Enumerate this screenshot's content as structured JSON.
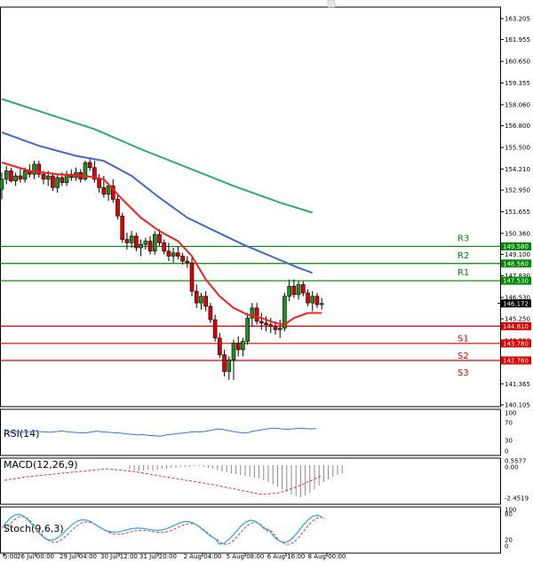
{
  "colors": {
    "bull": "#1e8e1e",
    "bear": "#dd0000",
    "resistance": "#008800",
    "support": "#dd0000",
    "ma_fast": "#ee2222",
    "ma_mid": "#4466cc",
    "ma_slow": "#33aa66",
    "rsi_line": "#3377dd",
    "macd_signal": "#ee3333",
    "stoch_main": "#22aadd",
    "stoch_signal": "#ee3333"
  },
  "price_axis": {
    "ticks": [
      "163.205",
      "161.955",
      "160.650",
      "159.355",
      "158.060",
      "156.800",
      "155.500",
      "154.210",
      "152.950",
      "151.655",
      "150.360",
      "149.100",
      "147.830",
      "146.530",
      "145.250",
      "143.960",
      "142.660",
      "141.365",
      "140.105"
    ]
  },
  "levels": [
    {
      "name": "R3",
      "value": 149.58,
      "label": "149.580",
      "kind": "resistance"
    },
    {
      "name": "R2",
      "value": 148.56,
      "label": "148.560",
      "kind": "resistance"
    },
    {
      "name": "R1",
      "value": 147.53,
      "label": "147.530",
      "kind": "resistance"
    },
    {
      "name": "S1",
      "value": 144.81,
      "label": "144.810",
      "kind": "support"
    },
    {
      "name": "S2",
      "value": 143.78,
      "label": "143.780",
      "kind": "support"
    },
    {
      "name": "S3",
      "value": 142.76,
      "label": "142.760",
      "kind": "support"
    }
  ],
  "current_price": {
    "value": 146.172,
    "label": "146.172"
  },
  "time_axis": [
    "5:00",
    "26 Jul 00:00",
    "29 Jul 04:00",
    "30 Jul 12:00",
    "31 Jul 20:00",
    "2 Aug 04:00",
    "5 Aug 08:00",
    "6 Aug 16:00",
    "8 Aug 00:00"
  ],
  "rsi": {
    "title": "RSI(14)",
    "ticks": [
      "100",
      "70",
      "30",
      "0"
    ]
  },
  "macd": {
    "title": "MACD(12,26,9)",
    "ticks": [
      "0.5577",
      "0.00",
      "-2.4519"
    ]
  },
  "stoch": {
    "title": "Stoch(9,6,3)",
    "ticks": [
      "100",
      "80",
      "20",
      "0"
    ]
  },
  "chart_data": {
    "type": "candlestick",
    "y_range": [
      140.105,
      163.205
    ],
    "candles": [
      {
        "o": 153.0,
        "h": 154.0,
        "l": 152.4,
        "c": 153.6
      },
      {
        "o": 153.6,
        "h": 154.4,
        "l": 153.3,
        "c": 154.1
      },
      {
        "o": 154.1,
        "h": 154.3,
        "l": 153.4,
        "c": 153.5
      },
      {
        "o": 153.5,
        "h": 154.0,
        "l": 153.2,
        "c": 153.8
      },
      {
        "o": 153.8,
        "h": 154.2,
        "l": 153.4,
        "c": 153.6
      },
      {
        "o": 153.6,
        "h": 154.3,
        "l": 153.4,
        "c": 154.1
      },
      {
        "o": 154.1,
        "h": 154.5,
        "l": 153.7,
        "c": 153.9
      },
      {
        "o": 153.9,
        "h": 154.7,
        "l": 153.6,
        "c": 154.5
      },
      {
        "o": 154.5,
        "h": 154.7,
        "l": 153.7,
        "c": 153.9
      },
      {
        "o": 153.9,
        "h": 154.1,
        "l": 153.3,
        "c": 153.6
      },
      {
        "o": 153.6,
        "h": 154.1,
        "l": 153.2,
        "c": 153.8
      },
      {
        "o": 153.8,
        "h": 154.0,
        "l": 152.9,
        "c": 153.1
      },
      {
        "o": 153.1,
        "h": 153.9,
        "l": 152.8,
        "c": 153.7
      },
      {
        "o": 153.7,
        "h": 154.0,
        "l": 153.2,
        "c": 153.4
      },
      {
        "o": 153.4,
        "h": 154.1,
        "l": 153.2,
        "c": 153.9
      },
      {
        "o": 153.9,
        "h": 154.2,
        "l": 153.5,
        "c": 153.7
      },
      {
        "o": 153.7,
        "h": 154.3,
        "l": 153.5,
        "c": 154.0
      },
      {
        "o": 154.0,
        "h": 154.2,
        "l": 153.4,
        "c": 153.6
      },
      {
        "o": 153.6,
        "h": 154.7,
        "l": 153.5,
        "c": 154.6
      },
      {
        "o": 154.6,
        "h": 154.9,
        "l": 154.1,
        "c": 154.3
      },
      {
        "o": 154.3,
        "h": 154.7,
        "l": 153.4,
        "c": 153.6
      },
      {
        "o": 153.6,
        "h": 153.9,
        "l": 152.8,
        "c": 153.1
      },
      {
        "o": 153.1,
        "h": 153.8,
        "l": 152.5,
        "c": 152.7
      },
      {
        "o": 152.7,
        "h": 153.4,
        "l": 152.3,
        "c": 153.2
      },
      {
        "o": 153.2,
        "h": 153.6,
        "l": 152.2,
        "c": 152.4
      },
      {
        "o": 152.4,
        "h": 152.7,
        "l": 151.2,
        "c": 151.4
      },
      {
        "o": 151.4,
        "h": 151.6,
        "l": 149.8,
        "c": 150.0
      },
      {
        "o": 150.0,
        "h": 150.4,
        "l": 149.4,
        "c": 149.8
      },
      {
        "o": 149.8,
        "h": 150.5,
        "l": 149.5,
        "c": 150.2
      },
      {
        "o": 150.2,
        "h": 150.4,
        "l": 149.3,
        "c": 149.5
      },
      {
        "o": 149.5,
        "h": 150.0,
        "l": 149.0,
        "c": 149.7
      },
      {
        "o": 149.7,
        "h": 150.1,
        "l": 149.4,
        "c": 149.9
      },
      {
        "o": 149.9,
        "h": 150.2,
        "l": 149.1,
        "c": 149.3
      },
      {
        "o": 149.3,
        "h": 150.5,
        "l": 149.1,
        "c": 150.3
      },
      {
        "o": 150.3,
        "h": 150.6,
        "l": 149.6,
        "c": 149.8
      },
      {
        "o": 149.8,
        "h": 150.0,
        "l": 149.1,
        "c": 149.3
      },
      {
        "o": 149.3,
        "h": 149.8,
        "l": 148.7,
        "c": 149.0
      },
      {
        "o": 149.0,
        "h": 149.5,
        "l": 148.6,
        "c": 149.2
      },
      {
        "o": 149.2,
        "h": 149.6,
        "l": 148.8,
        "c": 149.0
      },
      {
        "o": 149.0,
        "h": 149.2,
        "l": 148.5,
        "c": 148.7
      },
      {
        "o": 148.7,
        "h": 149.0,
        "l": 148.3,
        "c": 148.6
      },
      {
        "o": 148.6,
        "h": 148.9,
        "l": 146.6,
        "c": 146.9
      },
      {
        "o": 146.9,
        "h": 147.3,
        "l": 145.9,
        "c": 146.2
      },
      {
        "o": 146.2,
        "h": 146.8,
        "l": 145.8,
        "c": 146.6
      },
      {
        "o": 146.6,
        "h": 146.9,
        "l": 145.7,
        "c": 146.0
      },
      {
        "o": 146.0,
        "h": 146.2,
        "l": 145.0,
        "c": 145.2
      },
      {
        "o": 145.2,
        "h": 145.5,
        "l": 143.9,
        "c": 144.1
      },
      {
        "o": 144.1,
        "h": 144.4,
        "l": 142.9,
        "c": 143.1
      },
      {
        "o": 143.1,
        "h": 143.4,
        "l": 141.8,
        "c": 142.1
      },
      {
        "o": 142.1,
        "h": 143.0,
        "l": 141.6,
        "c": 142.8
      },
      {
        "o": 142.8,
        "h": 144.0,
        "l": 141.6,
        "c": 143.8
      },
      {
        "o": 143.8,
        "h": 144.2,
        "l": 143.0,
        "c": 143.4
      },
      {
        "o": 143.4,
        "h": 144.1,
        "l": 143.0,
        "c": 143.9
      },
      {
        "o": 143.9,
        "h": 145.6,
        "l": 143.7,
        "c": 145.3
      },
      {
        "o": 145.3,
        "h": 146.2,
        "l": 144.8,
        "c": 145.9
      },
      {
        "o": 145.9,
        "h": 146.2,
        "l": 144.9,
        "c": 145.1
      },
      {
        "o": 145.1,
        "h": 145.6,
        "l": 144.6,
        "c": 145.0
      },
      {
        "o": 145.0,
        "h": 145.4,
        "l": 144.5,
        "c": 144.9
      },
      {
        "o": 144.9,
        "h": 145.3,
        "l": 144.4,
        "c": 144.8
      },
      {
        "o": 144.8,
        "h": 145.1,
        "l": 144.3,
        "c": 144.6
      },
      {
        "o": 144.6,
        "h": 145.2,
        "l": 144.1,
        "c": 144.7
      },
      {
        "o": 144.7,
        "h": 146.8,
        "l": 144.5,
        "c": 146.6
      },
      {
        "o": 146.6,
        "h": 147.6,
        "l": 146.3,
        "c": 147.2
      },
      {
        "o": 147.2,
        "h": 147.6,
        "l": 146.5,
        "c": 146.7
      },
      {
        "o": 146.7,
        "h": 147.5,
        "l": 146.4,
        "c": 147.3
      },
      {
        "o": 147.3,
        "h": 147.5,
        "l": 146.6,
        "c": 146.8
      },
      {
        "o": 146.8,
        "h": 147.0,
        "l": 146.0,
        "c": 146.2
      },
      {
        "o": 146.2,
        "h": 146.9,
        "l": 145.7,
        "c": 146.6
      },
      {
        "o": 146.6,
        "h": 146.8,
        "l": 145.9,
        "c": 146.1
      },
      {
        "o": 146.1,
        "h": 146.5,
        "l": 145.8,
        "c": 146.172
      }
    ],
    "ma_fast": [
      [
        0,
        154.6
      ],
      [
        6,
        154.1
      ],
      [
        12,
        153.9
      ],
      [
        18,
        153.8
      ],
      [
        22,
        153.6
      ],
      [
        26,
        152.4
      ],
      [
        30,
        151.3
      ],
      [
        34,
        150.5
      ],
      [
        38,
        149.9
      ],
      [
        41,
        149.0
      ],
      [
        44,
        147.6
      ],
      [
        47,
        146.6
      ],
      [
        50,
        145.9
      ],
      [
        53,
        145.5
      ],
      [
        56,
        145.3
      ],
      [
        59,
        145.0
      ],
      [
        61,
        144.9
      ],
      [
        63,
        145.3
      ],
      [
        66,
        145.6
      ],
      [
        69,
        145.6
      ]
    ],
    "ma_mid": [
      [
        0,
        156.4
      ],
      [
        8,
        155.6
      ],
      [
        16,
        155.0
      ],
      [
        22,
        154.7
      ],
      [
        28,
        153.8
      ],
      [
        34,
        152.5
      ],
      [
        40,
        151.3
      ],
      [
        46,
        150.5
      ],
      [
        52,
        149.7
      ],
      [
        58,
        149.0
      ],
      [
        64,
        148.3
      ],
      [
        67,
        148.0
      ]
    ],
    "ma_slow": [
      [
        0,
        158.4
      ],
      [
        10,
        157.5
      ],
      [
        20,
        156.6
      ],
      [
        30,
        155.4
      ],
      [
        40,
        154.3
      ],
      [
        50,
        153.2
      ],
      [
        60,
        152.2
      ],
      [
        67,
        151.6
      ]
    ]
  }
}
